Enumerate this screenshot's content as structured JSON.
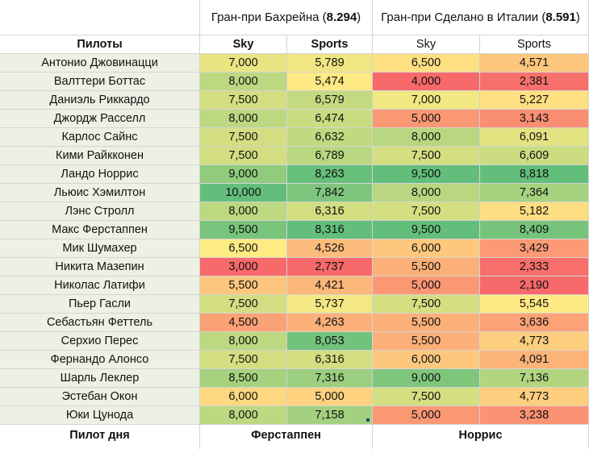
{
  "races": [
    {
      "title": "Гран-при Бахрейна",
      "score": "8.294"
    },
    {
      "title": "Гран-при Сделано в Италии",
      "score": "8.591"
    }
  ],
  "header": {
    "drivers": "Пилоты",
    "sky1": "Sky",
    "sports1": "Sports",
    "sky2": "Sky",
    "sports2": "Sports"
  },
  "rows": [
    {
      "name": "Антонио Джовинацци",
      "sky1": "7,000",
      "sports1": "5,789",
      "sky2": "6,500",
      "sports2": "4,571"
    },
    {
      "name": "Валттери Боттас",
      "sky1": "8,000",
      "sports1": "5,474",
      "sky2": "4,000",
      "sports2": "2,381"
    },
    {
      "name": "Даниэль Риккардо",
      "sky1": "7,500",
      "sports1": "6,579",
      "sky2": "7,000",
      "sports2": "5,227"
    },
    {
      "name": "Джордж Расселл",
      "sky1": "8,000",
      "sports1": "6,474",
      "sky2": "5,000",
      "sports2": "3,143"
    },
    {
      "name": "Карлос Сайнс",
      "sky1": "7,500",
      "sports1": "6,632",
      "sky2": "8,000",
      "sports2": "6,091"
    },
    {
      "name": "Кими Райкконен",
      "sky1": "7,500",
      "sports1": "6,789",
      "sky2": "7,500",
      "sports2": "6,609"
    },
    {
      "name": "Ландо Норрис",
      "sky1": "9,000",
      "sports1": "8,263",
      "sky2": "9,500",
      "sports2": "8,818"
    },
    {
      "name": "Льюис Хэмилтон",
      "sky1": "10,000",
      "sports1": "7,842",
      "sky2": "8,000",
      "sports2": "7,364"
    },
    {
      "name": "Лэнс Стролл",
      "sky1": "8,000",
      "sports1": "6,316",
      "sky2": "7,500",
      "sports2": "5,182"
    },
    {
      "name": "Макс Ферстаппен",
      "sky1": "9,500",
      "sports1": "8,316",
      "sky2": "9,500",
      "sports2": "8,409"
    },
    {
      "name": "Мик Шумахер",
      "sky1": "6,500",
      "sports1": "4,526",
      "sky2": "6,000",
      "sports2": "3,429"
    },
    {
      "name": "Никита Мазепин",
      "sky1": "3,000",
      "sports1": "2,737",
      "sky2": "5,500",
      "sports2": "2,333"
    },
    {
      "name": "Николас Латифи",
      "sky1": "5,500",
      "sports1": "4,421",
      "sky2": "5,000",
      "sports2": "2,190"
    },
    {
      "name": "Пьер Гасли",
      "sky1": "7,500",
      "sports1": "5,737",
      "sky2": "7,500",
      "sports2": "5,545"
    },
    {
      "name": "Себастьян Феттель",
      "sky1": "4,500",
      "sports1": "4,263",
      "sky2": "5,500",
      "sports2": "3,636"
    },
    {
      "name": "Серхио Перес",
      "sky1": "8,000",
      "sports1": "8,053",
      "sky2": "5,500",
      "sports2": "4,773"
    },
    {
      "name": "Фернандо Алонсо",
      "sky1": "7,500",
      "sports1": "6,316",
      "sky2": "6,000",
      "sports2": "4,091"
    },
    {
      "name": "Шарль Леклер",
      "sky1": "8,500",
      "sports1": "7,316",
      "sky2": "9,000",
      "sports2": "7,136"
    },
    {
      "name": "Эстебан Окон",
      "sky1": "6,000",
      "sports1": "5,000",
      "sky2": "7,500",
      "sports2": "4,773"
    },
    {
      "name": "Юки Цунода",
      "sky1": "8,000",
      "sports1": "7,158",
      "sky2": "5,000",
      "sports2": "3,238"
    }
  ],
  "footer": {
    "label": "Пилот дня",
    "race1": "Ферстаппен",
    "race2": "Норрис"
  },
  "colors": {
    "low": "#f8696b",
    "mid": "#ffeb84",
    "high": "#63be7b"
  }
}
